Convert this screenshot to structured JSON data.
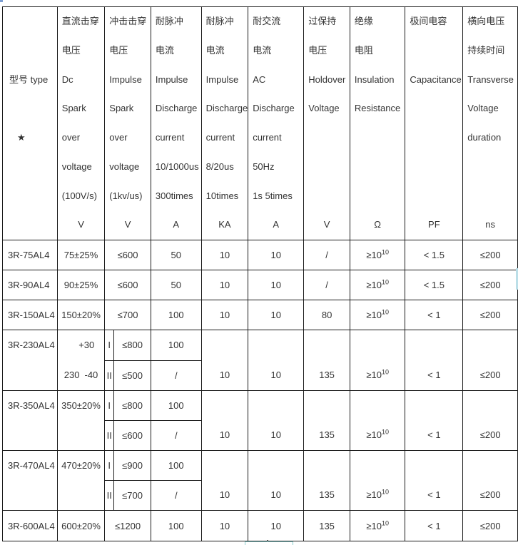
{
  "colors": {
    "border": "#1a1a1a",
    "text": "#333333",
    "artifact_teal": "#8ecfcf",
    "artifact_blue": "#7b9fd4",
    "artifact_lightblue": "#bcdfe8"
  },
  "header": {
    "model": [
      "",
      "",
      "型号 type",
      "",
      "★",
      "",
      "",
      ""
    ],
    "dc_spark": [
      "直流击穿",
      "电压",
      "Dc",
      "Spark",
      "over",
      "voltage",
      "(100V/s)",
      "V"
    ],
    "impulse_spark": [
      "冲击击穿",
      "电压",
      "Impulse",
      "Spark",
      "over",
      "voltage",
      "(1kv/us)",
      "V"
    ],
    "impulse_discharge": [
      "耐脉冲",
      "电流",
      "Impulse",
      "Discharge",
      "current",
      "10/1000us",
      "300times",
      "A"
    ],
    "impulse_discharge_820": [
      "耐脉冲",
      "电流",
      "Impulse",
      "Discharge",
      "current",
      "8/20us",
      "10times",
      "KA"
    ],
    "ac_discharge": [
      "耐交流",
      "电流",
      "AC",
      "Discharge",
      "current",
      "50Hz",
      "1s 5times",
      "A"
    ],
    "holdover": [
      "过保持",
      "电压",
      "Holdover",
      "Voltage",
      "",
      "",
      "",
      "V"
    ],
    "insulation": [
      "绝缘",
      "电阻",
      "Insulation",
      "Resistance",
      "",
      "",
      "",
      "Ω"
    ],
    "capacitance": [
      "极间电容",
      "",
      "Capacitance",
      "",
      "",
      "",
      "",
      "PF"
    ],
    "transverse": [
      "横向电压",
      "持续时间",
      "Transverse",
      "Voltage",
      "duration",
      "",
      "",
      "ns"
    ]
  },
  "rows": {
    "r75": {
      "model": "3R-75AL4",
      "dc": "75±25%",
      "imp": "≤600",
      "disch": "50",
      "ka": "10",
      "ac": "10",
      "hold": "/",
      "ins_base": "≥10",
      "ins_sup": "10",
      "cap": "< 1.5",
      "trans": "≤200"
    },
    "r90": {
      "model": "3R-90AL4",
      "dc": "90±25%",
      "imp": "≤600",
      "disch": "50",
      "ka": "10",
      "ac": "10",
      "hold": "/",
      "ins_base": "≥10",
      "ins_sup": "10",
      "cap": "< 1.5",
      "trans": "≤200"
    },
    "r150": {
      "model": "3R-150AL4",
      "dc": "150±20%",
      "imp": "≤700",
      "disch": "100",
      "ka": "10",
      "ac": "10",
      "hold": "80",
      "ins_base": "≥10",
      "ins_sup": "10",
      "cap": "< 1",
      "trans": "≤200"
    },
    "r230": {
      "model": "3R-230AL4",
      "dc_plus": "+30",
      "dc_main": "230",
      "dc_minus": "-40",
      "sub1_label": "I",
      "sub1_imp": "≤800",
      "sub1_disch": "100",
      "sub2_label": "II",
      "sub2_imp": "≤500",
      "sub2_disch": "/",
      "ka": "10",
      "ac": "10",
      "hold": "135",
      "ins_base": "≥10",
      "ins_sup": "10",
      "cap": "< 1",
      "trans": "≤200"
    },
    "r350": {
      "model": "3R-350AL4",
      "dc": "350±20%",
      "sub1_label": "I",
      "sub1_imp": "≤800",
      "sub1_disch": "100",
      "sub2_label": "II",
      "sub2_imp": "≤600",
      "sub2_disch": "/",
      "ka": "10",
      "ac": "10",
      "hold": "135",
      "ins_base": "≥10",
      "ins_sup": "10",
      "cap": "< 1",
      "trans": "≤200"
    },
    "r470": {
      "model": "3R-470AL4",
      "dc": "470±20%",
      "sub1_label": "I",
      "sub1_imp": "≤900",
      "sub1_disch": "100",
      "sub2_label": "II",
      "sub2_imp": "≤700",
      "sub2_disch": "/",
      "ka": "10",
      "ac": "10",
      "hold": "135",
      "ins_base": "≥10",
      "ins_sup": "10",
      "cap": "< 1",
      "trans": "≤200"
    },
    "r600": {
      "model": "3R-600AL4",
      "dc": "600±20%",
      "imp": "≤1200",
      "disch": "100",
      "ka": "10",
      "ac": "10",
      "hold": "135",
      "ins_base": "≥10",
      "ins_sup": "10",
      "cap": "< 1",
      "trans": "≤200"
    }
  }
}
